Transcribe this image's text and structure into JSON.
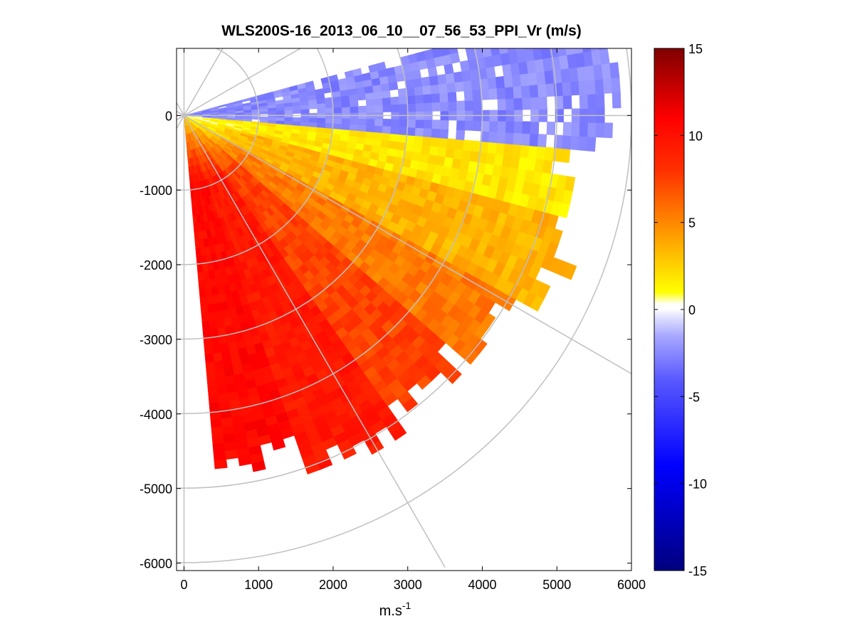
{
  "chart_data": {
    "type": "heatmap",
    "subtype": "polar-ppi-scan",
    "title": "WLS200S-16_2013_06_10__07_56_53_PPI_Vr (m/s)",
    "xlabel": "m.s",
    "xlabel_superscript": "-1",
    "ylabel": "",
    "xlim": [
      -100,
      6000
    ],
    "ylim": [
      -6100,
      900
    ],
    "x_ticks": [
      0,
      1000,
      2000,
      3000,
      4000,
      5000,
      6000
    ],
    "x_tick_labels": [
      "0",
      "1000",
      "2000",
      "3000",
      "4000",
      "5000",
      "6000"
    ],
    "y_ticks": [
      0,
      -1000,
      -2000,
      -3000,
      -4000,
      -5000,
      -6000
    ],
    "y_tick_labels": [
      "0",
      "-1000",
      "-2000",
      "-3000",
      "-4000",
      "-5000",
      "-6000"
    ],
    "polar_grid": {
      "range_rings_m": [
        1000,
        2000,
        3000,
        4000,
        5000,
        6000
      ],
      "spokes_deg": [
        -60,
        -30,
        0,
        30,
        60,
        90,
        120,
        150,
        180,
        210,
        240,
        270
      ]
    },
    "scan": {
      "azimuth_range_deg": [
        -85,
        15
      ],
      "max_range_m": 5600,
      "bands": [
        {
          "azimuth_deg": [
            -85,
            -70
          ],
          "max_range_m": 4650,
          "velocity_ms": 10.5
        },
        {
          "azimuth_deg": [
            -70,
            -55
          ],
          "max_range_m": 5000,
          "velocity_ms": 9.5
        },
        {
          "azimuth_deg": [
            -55,
            -40
          ],
          "max_range_m": 4850,
          "velocity_ms": 7.5
        },
        {
          "azimuth_deg": [
            -40,
            -28
          ],
          "max_range_m": 5000,
          "velocity_ms": 5.5
        },
        {
          "azimuth_deg": [
            -28,
            -15
          ],
          "max_range_m": 5400,
          "velocity_ms": 3.5
        },
        {
          "azimuth_deg": [
            -15,
            -5
          ],
          "max_range_m": 5100,
          "velocity_ms": 1.8
        },
        {
          "azimuth_deg": [
            -5,
            15
          ],
          "max_range_m": 5600,
          "velocity_ms": -2.5
        }
      ]
    },
    "colorbar": {
      "min": -15,
      "max": 15,
      "ticks": [
        15,
        10,
        5,
        0,
        -5,
        -10,
        -15
      ],
      "tick_labels": [
        "15",
        "10",
        "5",
        "0",
        "-5",
        "-10",
        "-15"
      ],
      "stops": [
        {
          "value": -15,
          "color": "#00007f"
        },
        {
          "value": -9,
          "color": "#0000ff"
        },
        {
          "value": -4,
          "color": "#5a5aff"
        },
        {
          "value": -1.5,
          "color": "#a8a8ff"
        },
        {
          "value": -0.3,
          "color": "#e8e8ff"
        },
        {
          "value": 0,
          "color": "#ffffff"
        },
        {
          "value": 0.3,
          "color": "#ffffff"
        },
        {
          "value": 1,
          "color": "#ffff00"
        },
        {
          "value": 4,
          "color": "#ffa500"
        },
        {
          "value": 8,
          "color": "#ff3000"
        },
        {
          "value": 11,
          "color": "#ff0000"
        },
        {
          "value": 15,
          "color": "#7f0000"
        }
      ]
    }
  },
  "colors": {
    "grid": "#c0c0c0",
    "axis": "#000000",
    "background": "#ffffff"
  }
}
